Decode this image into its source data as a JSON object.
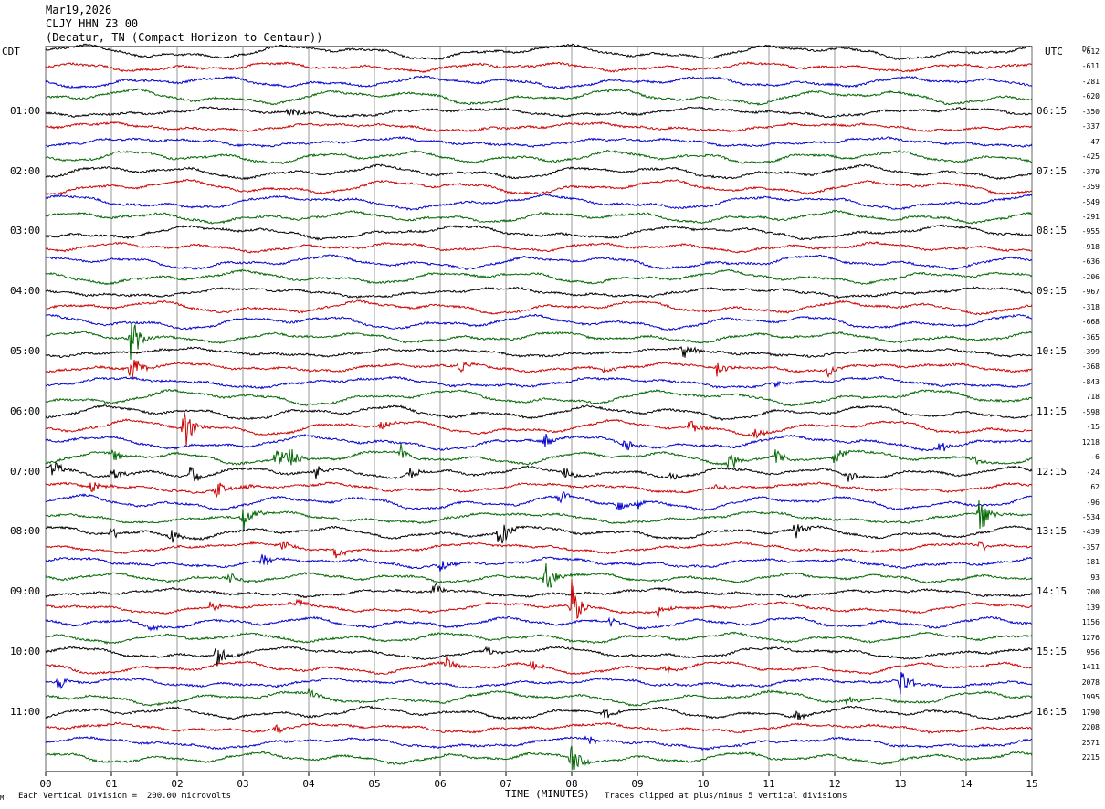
{
  "header": {
    "date": "Mar19,2026",
    "station": "CLJY HHN Z3 00",
    "location": "(Decatur, TN (Compact Horizon to Centaur))"
  },
  "left_tz": "CDT",
  "right_tz": "UTC",
  "dc_label": "DC",
  "footer": {
    "scale_note": "Each Vertical Division =  200.00 microvolts",
    "clip_note": "Traces clipped at plus/minus 5 vertical divisions",
    "corner_mark": "M"
  },
  "colors": {
    "black": "#000000",
    "red": "#cc0000",
    "blue": "#0000cc",
    "green": "#006600",
    "grid": "#000000"
  },
  "chart_data": {
    "type": "line",
    "title": "",
    "xlabel": "TIME (MINUTES)",
    "xlim": [
      0,
      15
    ],
    "x_ticks": [
      "00",
      "01",
      "02",
      "03",
      "04",
      "05",
      "06",
      "07",
      "08",
      "09",
      "10",
      "11",
      "12",
      "13",
      "14",
      "15"
    ],
    "trace_minutes": 15,
    "trace_count": 48,
    "trace_color_cycle": [
      "black",
      "red",
      "blue",
      "green"
    ],
    "left_hour_labels": [
      "01:00",
      "02:00",
      "03:00",
      "04:00",
      "05:00",
      "06:00",
      "07:00",
      "08:00",
      "09:00",
      "10:00",
      "11:00"
    ],
    "right_hour_labels": [
      "06:15",
      "07:15",
      "08:15",
      "09:15",
      "10:15",
      "11:15",
      "12:15",
      "13:15",
      "14:15",
      "15:15",
      "16:15"
    ],
    "dc_offsets": [
      "-612",
      "-611",
      "-281",
      "-620",
      "-350",
      "-337",
      "-47",
      "-425",
      "-379",
      "-359",
      "-549",
      "-291",
      "-955",
      "-918",
      "-636",
      "-206",
      "-967",
      "-318",
      "-668",
      "-365",
      "-399",
      "-368",
      "-843",
      "718",
      "-598",
      "-15",
      "1218",
      "-6",
      "-24",
      "62",
      "-96",
      "-534",
      "-439",
      "-357",
      "181",
      "93",
      "700",
      "139",
      "1156",
      "1276",
      "956",
      "1411",
      "2078",
      "1995",
      "1790",
      "2208",
      "2571",
      "2215"
    ],
    "events": [
      {
        "trace": 4,
        "minute": 3.7,
        "amp": 8
      },
      {
        "trace": 19,
        "minute": 1.3,
        "amp": 30
      },
      {
        "trace": 20,
        "minute": 9.7,
        "amp": 12
      },
      {
        "trace": 21,
        "minute": 10.2,
        "amp": 10
      },
      {
        "trace": 21,
        "minute": 1.3,
        "amp": 22
      },
      {
        "trace": 21,
        "minute": 6.3,
        "amp": 8
      },
      {
        "trace": 21,
        "minute": 8.5,
        "amp": 6
      },
      {
        "trace": 21,
        "minute": 11.9,
        "amp": 8
      },
      {
        "trace": 22,
        "minute": 11.1,
        "amp": 6
      },
      {
        "trace": 25,
        "minute": 2.1,
        "amp": 28
      },
      {
        "trace": 25,
        "minute": 5.1,
        "amp": 8
      },
      {
        "trace": 25,
        "minute": 9.8,
        "amp": 10
      },
      {
        "trace": 25,
        "minute": 10.8,
        "amp": 8
      },
      {
        "trace": 26,
        "minute": 7.6,
        "amp": 10
      },
      {
        "trace": 26,
        "minute": 8.8,
        "amp": 10
      },
      {
        "trace": 26,
        "minute": 13.6,
        "amp": 8
      },
      {
        "trace": 27,
        "minute": 1.0,
        "amp": 10
      },
      {
        "trace": 27,
        "minute": 3.5,
        "amp": 12
      },
      {
        "trace": 27,
        "minute": 3.7,
        "amp": 16
      },
      {
        "trace": 27,
        "minute": 5.4,
        "amp": 10
      },
      {
        "trace": 27,
        "minute": 10.4,
        "amp": 12
      },
      {
        "trace": 27,
        "minute": 11.1,
        "amp": 10
      },
      {
        "trace": 27,
        "minute": 12.0,
        "amp": 10
      },
      {
        "trace": 27,
        "minute": 14.1,
        "amp": 6
      },
      {
        "trace": 28,
        "minute": 0.1,
        "amp": 12
      },
      {
        "trace": 28,
        "minute": 1.0,
        "amp": 10
      },
      {
        "trace": 28,
        "minute": 2.2,
        "amp": 14
      },
      {
        "trace": 28,
        "minute": 4.1,
        "amp": 12
      },
      {
        "trace": 28,
        "minute": 5.5,
        "amp": 10
      },
      {
        "trace": 28,
        "minute": 7.9,
        "amp": 10
      },
      {
        "trace": 28,
        "minute": 9.5,
        "amp": 6
      },
      {
        "trace": 28,
        "minute": 12.2,
        "amp": 8
      },
      {
        "trace": 29,
        "minute": 0.7,
        "amp": 8
      },
      {
        "trace": 29,
        "minute": 2.6,
        "amp": 10
      },
      {
        "trace": 29,
        "minute": 3.0,
        "amp": 6
      },
      {
        "trace": 29,
        "minute": 10.2,
        "amp": 6
      },
      {
        "trace": 30,
        "minute": 7.8,
        "amp": 8
      },
      {
        "trace": 30,
        "minute": 8.7,
        "amp": 10
      },
      {
        "trace": 30,
        "minute": 9.0,
        "amp": 6
      },
      {
        "trace": 31,
        "minute": 3.0,
        "amp": 18
      },
      {
        "trace": 31,
        "minute": 14.2,
        "amp": 24
      },
      {
        "trace": 32,
        "minute": 1.0,
        "amp": 8
      },
      {
        "trace": 32,
        "minute": 1.9,
        "amp": 10
      },
      {
        "trace": 32,
        "minute": 6.9,
        "amp": 22
      },
      {
        "trace": 32,
        "minute": 11.4,
        "amp": 10
      },
      {
        "trace": 33,
        "minute": 4.4,
        "amp": 12
      },
      {
        "trace": 33,
        "minute": 3.6,
        "amp": 6
      },
      {
        "trace": 33,
        "minute": 14.2,
        "amp": 8
      },
      {
        "trace": 34,
        "minute": 3.3,
        "amp": 10
      },
      {
        "trace": 34,
        "minute": 6.0,
        "amp": 8
      },
      {
        "trace": 35,
        "minute": 7.6,
        "amp": 26
      },
      {
        "trace": 35,
        "minute": 2.8,
        "amp": 6
      },
      {
        "trace": 36,
        "minute": 5.9,
        "amp": 10
      },
      {
        "trace": 37,
        "minute": 8.0,
        "amp": 30
      },
      {
        "trace": 37,
        "minute": 2.5,
        "amp": 6
      },
      {
        "trace": 37,
        "minute": 3.8,
        "amp": 6
      },
      {
        "trace": 37,
        "minute": 9.3,
        "amp": 6
      },
      {
        "trace": 38,
        "minute": 8.6,
        "amp": 8
      },
      {
        "trace": 38,
        "minute": 1.6,
        "amp": 6
      },
      {
        "trace": 40,
        "minute": 2.6,
        "amp": 16
      },
      {
        "trace": 40,
        "minute": 6.7,
        "amp": 6
      },
      {
        "trace": 41,
        "minute": 6.1,
        "amp": 8
      },
      {
        "trace": 41,
        "minute": 7.4,
        "amp": 6
      },
      {
        "trace": 41,
        "minute": 9.4,
        "amp": 6
      },
      {
        "trace": 42,
        "minute": 0.2,
        "amp": 10
      },
      {
        "trace": 42,
        "minute": 13.0,
        "amp": 20
      },
      {
        "trace": 43,
        "minute": 4.0,
        "amp": 6
      },
      {
        "trace": 43,
        "minute": 12.2,
        "amp": 6
      },
      {
        "trace": 44,
        "minute": 11.4,
        "amp": 8
      },
      {
        "trace": 44,
        "minute": 8.5,
        "amp": 6
      },
      {
        "trace": 45,
        "minute": 3.5,
        "amp": 6
      },
      {
        "trace": 46,
        "minute": 8.2,
        "amp": 10
      },
      {
        "trace": 47,
        "minute": 8.0,
        "amp": 20
      }
    ]
  }
}
